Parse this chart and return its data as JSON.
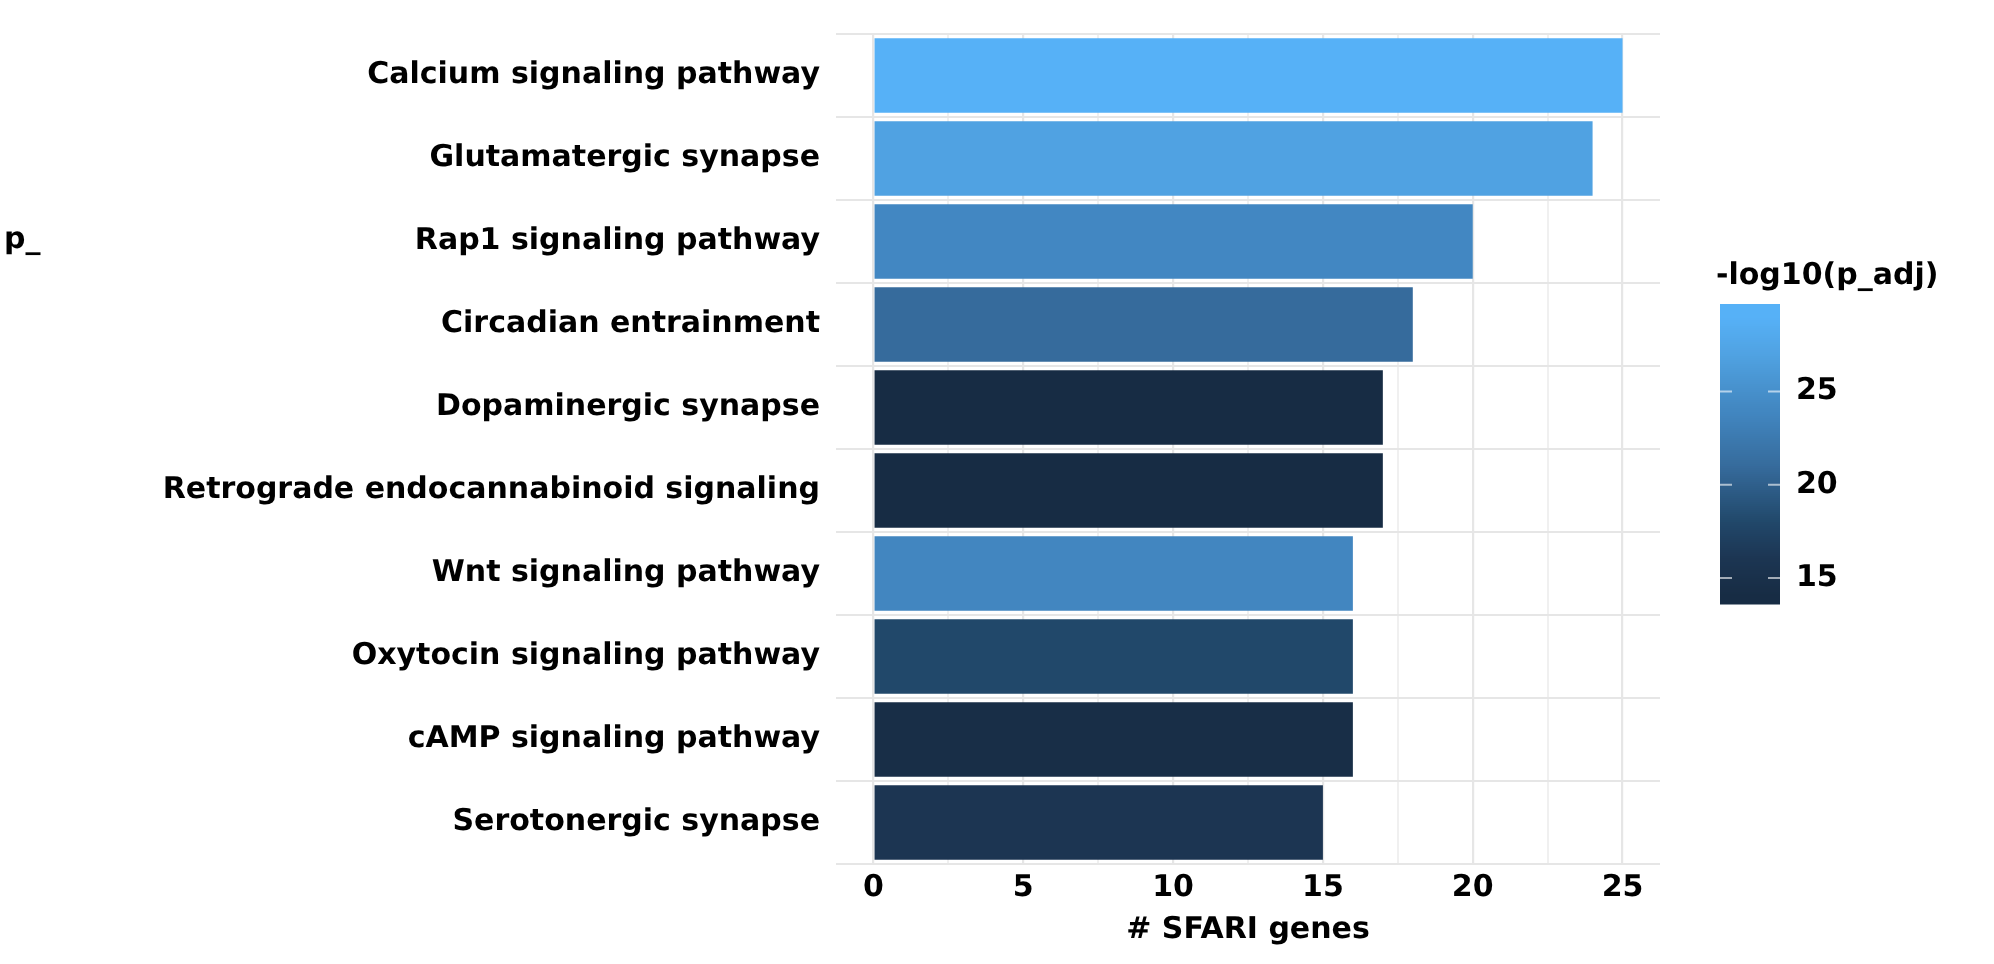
{
  "chart_data": {
    "type": "bar",
    "orientation": "horizontal",
    "xlabel": "# SFARI genes",
    "clabel": "-log10(p_adj)",
    "annotations": [
      "p_"
    ],
    "categories": [
      "Calcium signaling pathway",
      "Glutamatergic synapse",
      "Rap1 signaling pathway",
      "Circadian entrainment",
      "Dopaminergic synapse",
      "Retrograde endocannabinoid signaling",
      "Wnt signaling pathway",
      "Oxytocin signaling pathway",
      "cAMP signaling pathway",
      "Serotonergic synapse"
    ],
    "values": [
      25,
      24,
      20,
      18,
      17,
      17,
      16,
      16,
      16,
      15
    ],
    "colors": [
      "#56b1f7",
      "#50a2e2",
      "#4287c2",
      "#366b9c",
      "#172c44",
      "#172c44",
      "#4286c0",
      "#21486a",
      "#182e47",
      "#1c3552"
    ],
    "cvalues": [
      29,
      27,
      24,
      21,
      14,
      14,
      24,
      18,
      14.5,
      16
    ],
    "clim": [
      13.6,
      29.7
    ],
    "cticks": [
      15,
      20,
      25
    ],
    "xlim": [
      -1.25,
      26.25
    ],
    "xticks": [
      0,
      {
        "value": 2.5,
        "label": null
      },
      5,
      {
        "value": 7.5,
        "label": null
      },
      10,
      {
        "value": 12.5,
        "label": null
      },
      15,
      {
        "value": 17.5,
        "label": null
      },
      20,
      {
        "value": 22.5,
        "label": null
      },
      25
    ],
    "grid": true
  }
}
